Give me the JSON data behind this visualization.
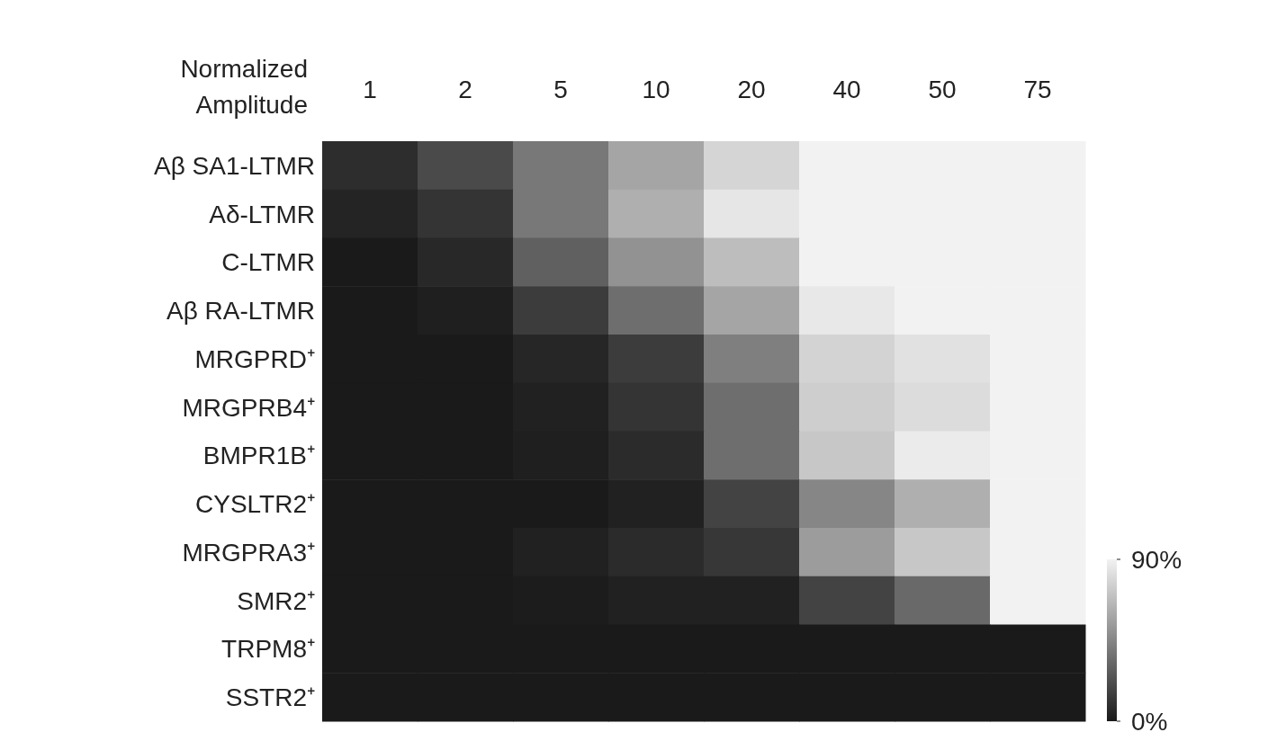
{
  "chart_data": {
    "type": "heatmap",
    "xlabel": "Normalized Amplitude",
    "categories": [
      "1",
      "2",
      "5",
      "10",
      "20",
      "40",
      "50",
      "75"
    ],
    "y_categories": [
      "Aβ SA1-LTMR",
      "Aδ-LTMR",
      "C-LTMR",
      "Aβ RA-LTMR",
      "MRGPRD⁺",
      "MRGPRB4⁺",
      "BMPR1B⁺",
      "CYSLTR2⁺",
      "MRGPRA3⁺",
      "SMR2⁺",
      "TRPM8⁺",
      "SSTR2⁺"
    ],
    "cells": [
      [
        8,
        20,
        39,
        58,
        78,
        90,
        90,
        90
      ],
      [
        4,
        11,
        39,
        62,
        85,
        90,
        90,
        90
      ],
      [
        0,
        6,
        29,
        50,
        68,
        90,
        90,
        90
      ],
      [
        0,
        2,
        14,
        35,
        58,
        86,
        90,
        90
      ],
      [
        0,
        0,
        5,
        14,
        42,
        77,
        83,
        90
      ],
      [
        0,
        0,
        3,
        11,
        35,
        75,
        81,
        90
      ],
      [
        0,
        0,
        2,
        7,
        35,
        72,
        87,
        90
      ],
      [
        0,
        0,
        0,
        3,
        17,
        45,
        62,
        90
      ],
      [
        0,
        0,
        3,
        7,
        12,
        54,
        72,
        90
      ],
      [
        0,
        0,
        1,
        3,
        3,
        17,
        33,
        90
      ],
      [
        0,
        0,
        0,
        0,
        0,
        0,
        0,
        0
      ],
      [
        0,
        0,
        0,
        0,
        0,
        0,
        0,
        0
      ]
    ],
    "clim": [
      0,
      90
    ],
    "cticks": [
      {
        "value": 0,
        "label": "0%"
      },
      {
        "value": 90,
        "label": "90%"
      }
    ]
  }
}
